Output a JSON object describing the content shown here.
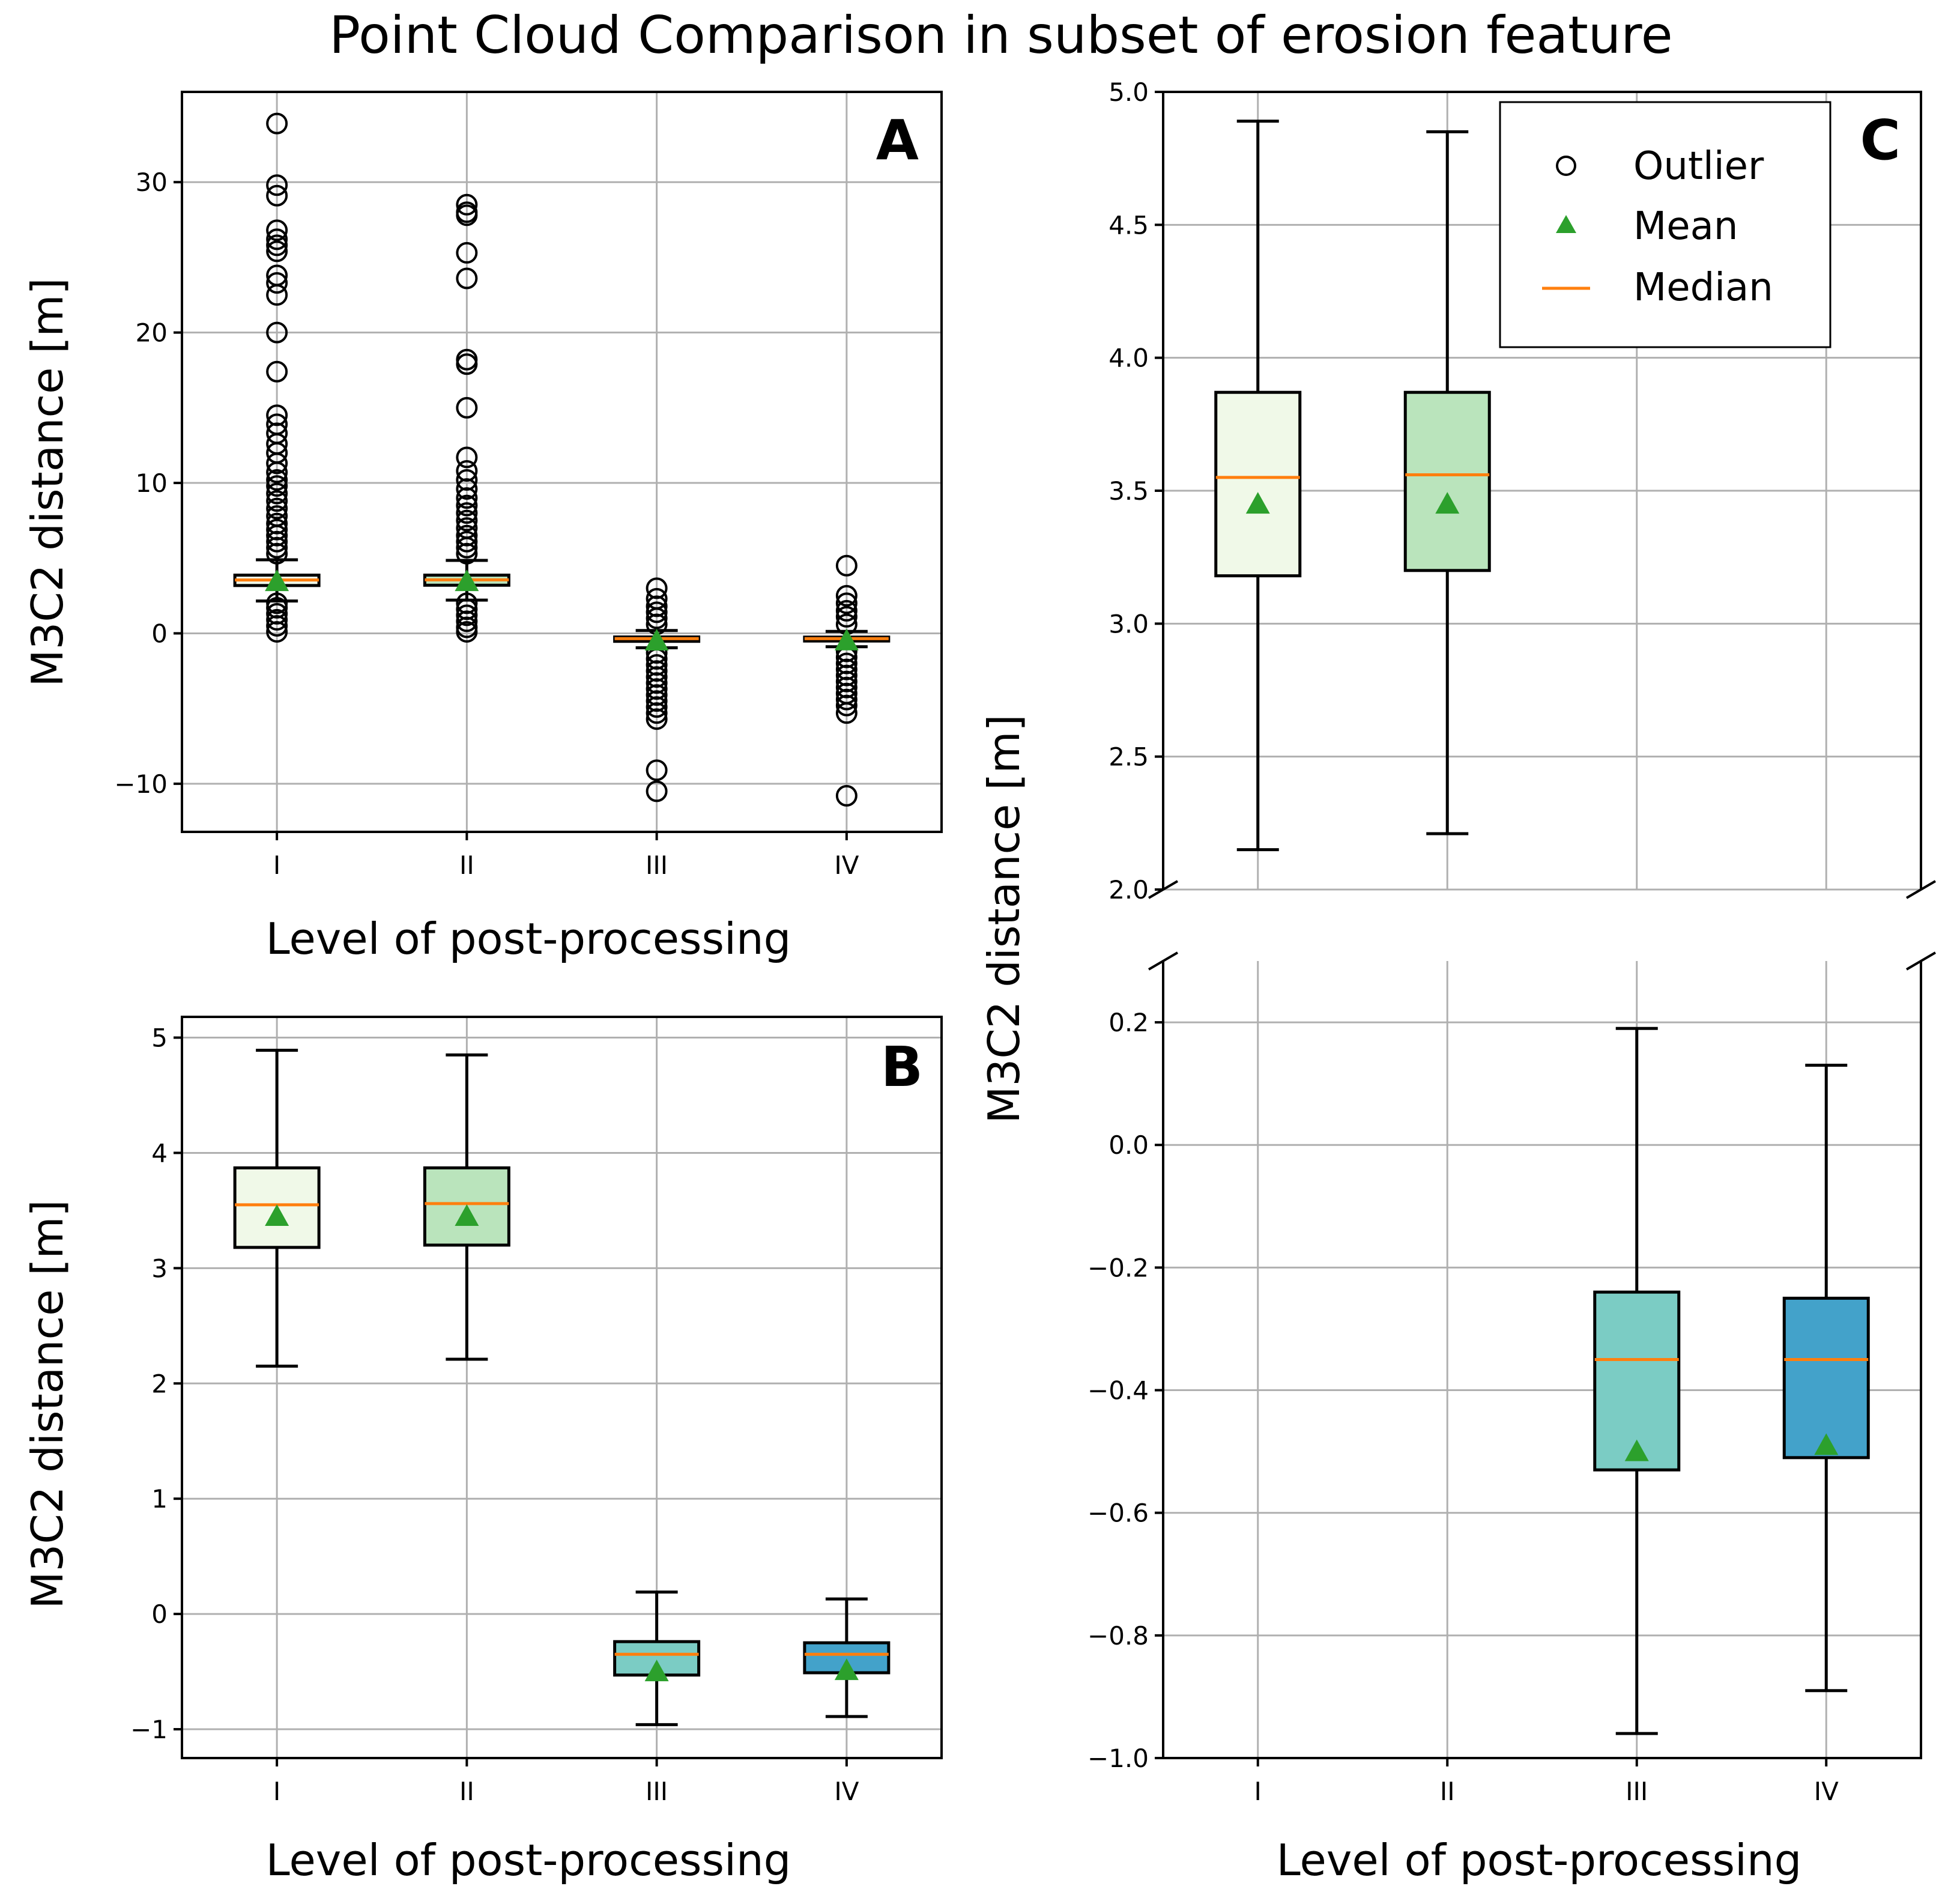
{
  "figure_title": "Point Cloud Comparison in subset of erosion feature",
  "chart_data": [
    {
      "panel": "A",
      "type": "box",
      "title": "Point Cloud Comparison in subset of erosion feature",
      "xlabel": "Level of post-processing",
      "ylabel": "M3C2 distance [m]",
      "categories": [
        "I",
        "II",
        "III",
        "IV"
      ],
      "ylim": [
        -13.2,
        36
      ],
      "yticks": [
        -10,
        0,
        10,
        20,
        30
      ],
      "ytick_labels": [
        "−10",
        "0",
        "10",
        "20",
        "30"
      ],
      "grid": true,
      "stats": [
        {
          "q1": 3.18,
          "median": 3.55,
          "q3": 3.87,
          "whislo": 2.15,
          "whishi": 4.89,
          "mean": 3.45
        },
        {
          "q1": 3.2,
          "median": 3.56,
          "q3": 3.87,
          "whislo": 2.21,
          "whishi": 4.85,
          "mean": 3.45
        },
        {
          "q1": -0.53,
          "median": -0.35,
          "q3": -0.24,
          "whislo": -0.96,
          "whishi": 0.19,
          "mean": -0.5
        },
        {
          "q1": -0.51,
          "median": -0.35,
          "q3": -0.25,
          "whislo": -0.89,
          "whishi": 0.13,
          "mean": -0.49
        }
      ],
      "outliers": [
        [
          33.9,
          29.8,
          29.1,
          26.8,
          26.2,
          25.8,
          25.4,
          23.8,
          23.3,
          22.5,
          20.0,
          17.4,
          14.5,
          13.9,
          13.3,
          12.6,
          12.0,
          11.3,
          10.7,
          10.2,
          9.8,
          9.3,
          8.8,
          8.3,
          7.8,
          7.3,
          6.9,
          6.5,
          6.1,
          5.7,
          5.3,
          2.0,
          1.7,
          1.3,
          0.9,
          0.5,
          0.1
        ],
        [
          28.5,
          28.0,
          27.8,
          25.3,
          23.6,
          18.2,
          17.9,
          15.0,
          11.7,
          10.8,
          10.2,
          9.6,
          9.0,
          8.5,
          8.0,
          7.5,
          7.0,
          6.5,
          6.1,
          5.7,
          5.3,
          2.0,
          1.6,
          1.2,
          0.8,
          0.4,
          0.1
        ],
        [
          3.0,
          2.3,
          1.8,
          1.4,
          1.0,
          0.6,
          -1.3,
          -1.7,
          -2.1,
          -2.5,
          -2.9,
          -3.3,
          -3.7,
          -4.1,
          -4.5,
          -4.9,
          -5.3,
          -5.7,
          -9.1,
          -10.5
        ],
        [
          4.5,
          2.5,
          2.0,
          1.5,
          1.1,
          0.6,
          -1.2,
          -1.6,
          -2.0,
          -2.4,
          -2.8,
          -3.2,
          -3.6,
          -4.0,
          -4.4,
          -4.8,
          -5.3,
          -10.8
        ]
      ]
    },
    {
      "panel": "B",
      "type": "box",
      "xlabel": "Level of post-processing",
      "ylabel": "M3C2 distance [m]",
      "categories": [
        "I",
        "II",
        "III",
        "IV"
      ],
      "ylim": [
        -1.25,
        5.18
      ],
      "yticks": [
        -1,
        0,
        1,
        2,
        3,
        4,
        5
      ],
      "ytick_labels": [
        "−1",
        "0",
        "1",
        "2",
        "3",
        "4",
        "5"
      ],
      "grid": true,
      "box_colors": [
        "#f0f9e8",
        "#bae4bc",
        "#7bccc4",
        "#43a2ca"
      ]
    },
    {
      "panel": "C",
      "type": "box",
      "broken_axis": true,
      "xlabel": "Level of post-processing",
      "ylabel": "M3C2 distance [m]",
      "categories": [
        "I",
        "II",
        "III",
        "IV"
      ],
      "upper_ylim": [
        2.0,
        5.0
      ],
      "upper_yticks": [
        2.0,
        2.5,
        3.0,
        3.5,
        4.0,
        4.5,
        5.0
      ],
      "upper_ytick_labels": [
        "2.0",
        "2.5",
        "3.0",
        "3.5",
        "4.0",
        "4.5",
        "5.0"
      ],
      "lower_ylim": [
        -1.0,
        0.3
      ],
      "lower_yticks": [
        -1.0,
        -0.8,
        -0.6,
        -0.4,
        -0.2,
        0.0,
        0.2
      ],
      "lower_ytick_labels": [
        "−1.0",
        "−0.8",
        "−0.6",
        "−0.4",
        "−0.2",
        "0.0",
        "0.2"
      ],
      "grid": true,
      "legend": {
        "placement": "top-right",
        "entries": [
          "Outlier",
          "Mean",
          "Median"
        ]
      }
    }
  ],
  "colors": {
    "median": "#ff7f0e",
    "mean": "#2ca02c",
    "grid": "#b0b0b0"
  }
}
